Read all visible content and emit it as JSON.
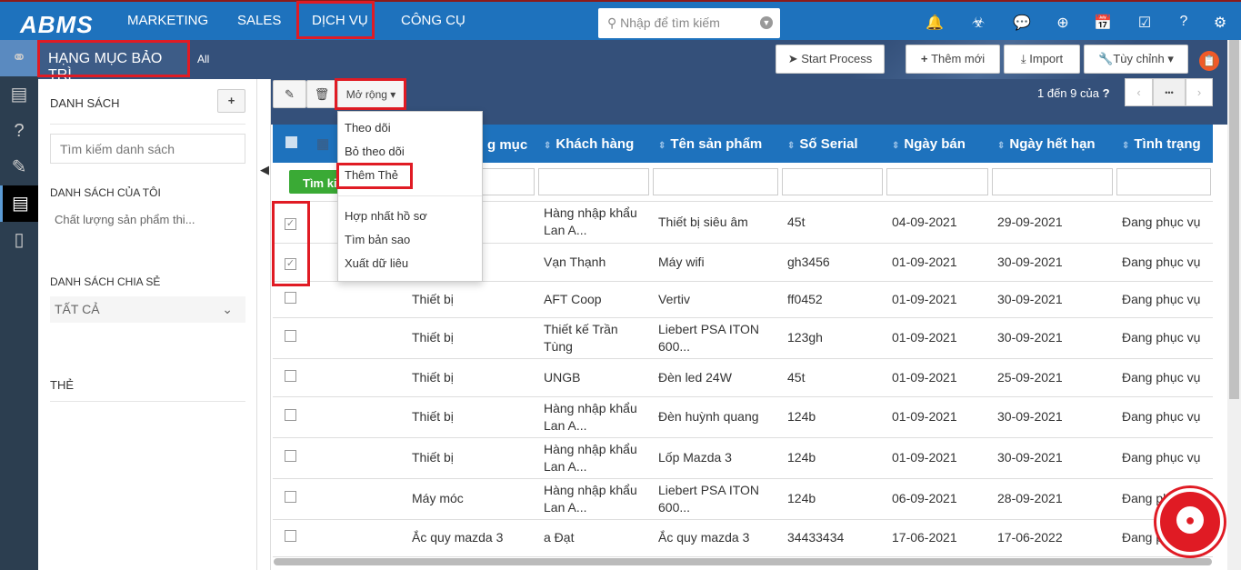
{
  "topbar": {
    "logo": "ABMS",
    "nav": [
      "MARKETING",
      "SALES",
      "DỊCH VỤ",
      "CÔNG CỤ"
    ],
    "search_placeholder": "Nhập để tìm kiếm"
  },
  "subbar": {
    "title": "HẠNG MỤC BẢO TRÌ",
    "filter": "All",
    "start_process": "Start Process",
    "add_new": "Thêm mới",
    "import": "Import",
    "customize": "Tùy chỉnh"
  },
  "sidebar": {
    "list_title": "DANH SÁCH",
    "add": "+",
    "search_placeholder": "Tìm kiếm danh sách",
    "my_lists": "DANH SÁCH CỦA TÔI",
    "my_list_item": "Chất lượng sản phẩm thi...",
    "shared_lists": "DANH SÁCH CHIA SẺ",
    "shared_select": "TẤT CẢ",
    "tags": "THẺ"
  },
  "toolbar": {
    "more": "Mở rộng",
    "pagination": "1 đến 9  của",
    "unknown": "?",
    "ellipsis": "•••",
    "search_btn": "Tìm ki"
  },
  "menu": {
    "items": [
      "Theo dõi",
      "Bỏ theo dõi",
      "Thêm Thẻ",
      "Hợp nhất hồ sơ",
      "Tìm bản sao",
      "Xuất dữ liêu"
    ]
  },
  "table": {
    "headers": [
      "",
      "g mục",
      "Khách hàng",
      "Tên sản phẩm",
      "Số Serial",
      "Ngày bán",
      "Ngày hết hạn",
      "Tình trạng"
    ],
    "rows": [
      {
        "checked": true,
        "cat": "",
        "cust": "Hàng nhập khẩu Lan A...",
        "prod": "Thiết bị siêu âm",
        "serial": "45t",
        "sold": "04-09-2021",
        "exp": "29-09-2021",
        "status": "Đang phục vụ"
      },
      {
        "checked": true,
        "cat": "",
        "cust": "Vạn Thạnh",
        "prod": "Máy wifi",
        "serial": "gh3456",
        "sold": "01-09-2021",
        "exp": "30-09-2021",
        "status": "Đang phục vụ"
      },
      {
        "checked": false,
        "cat": "Thiết bị",
        "cust": "AFT Coop",
        "prod": "Vertiv",
        "serial": "ff0452",
        "sold": "01-09-2021",
        "exp": "30-09-2021",
        "status": "Đang phục vụ"
      },
      {
        "checked": false,
        "cat": "Thiết bị",
        "cust": "Thiết kế Trần Tùng",
        "prod": "Liebert PSA ITON 600...",
        "serial": "123gh",
        "sold": "01-09-2021",
        "exp": "30-09-2021",
        "status": "Đang phục vụ"
      },
      {
        "checked": false,
        "cat": "Thiết bị",
        "cust": "UNGB",
        "prod": "Đèn led 24W",
        "serial": "45t",
        "sold": "01-09-2021",
        "exp": "25-09-2021",
        "status": "Đang phục vụ"
      },
      {
        "checked": false,
        "cat": "Thiết bị",
        "cust": "Hàng nhập khẩu Lan A...",
        "prod": "Đèn huỳnh quang",
        "serial": "124b",
        "sold": "01-09-2021",
        "exp": "30-09-2021",
        "status": "Đang phục vụ"
      },
      {
        "checked": false,
        "cat": "Thiết bị",
        "cust": "Hàng nhập khẩu Lan A...",
        "prod": "Lốp Mazda 3",
        "serial": "124b",
        "sold": "01-09-2021",
        "exp": "30-09-2021",
        "status": "Đang phục vụ"
      },
      {
        "checked": false,
        "cat": "Máy móc",
        "cust": "Hàng nhập khẩu Lan A...",
        "prod": "Liebert PSA ITON 600...",
        "serial": "124b",
        "sold": "06-09-2021",
        "exp": "28-09-2021",
        "status": "Đang phục vụ"
      },
      {
        "checked": false,
        "cat": "Ắc quy mazda 3",
        "cust": "a Đạt",
        "prod": "Ắc quy mazda 3",
        "serial": "34433434",
        "sold": "17-06-2021",
        "exp": "17-06-2022",
        "status": "Đang phục vụ"
      }
    ]
  },
  "colors": {
    "primary": "#1e72bd",
    "highlight": "#e01b24",
    "search_button": "#3aaa35"
  }
}
